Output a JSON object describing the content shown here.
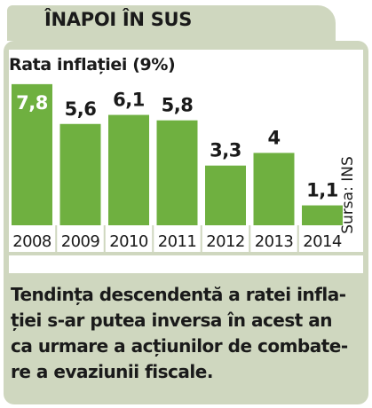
{
  "header": {
    "title": "ÎNAPOI ÎN SUS"
  },
  "chart_data": {
    "type": "bar",
    "title": "Rata inflației (9%)",
    "categories": [
      "2008",
      "2009",
      "2010",
      "2011",
      "2012",
      "2013",
      "2014"
    ],
    "values": [
      7.8,
      5.6,
      6.1,
      5.8,
      3.3,
      4,
      1.1
    ],
    "value_labels": [
      "7,8",
      "5,6",
      "6,1",
      "5,8",
      "3,3",
      "4",
      "1,1"
    ],
    "xlabel": "",
    "ylabel": "",
    "ylim": [
      0,
      9
    ],
    "grid": false,
    "legend": "none",
    "source": "Sursa: INS",
    "colors": {
      "bar": "#6fb040",
      "label_inside": "#ffffff",
      "label_outside": "#1a1a1a",
      "panel": "#cfd7bf"
    }
  },
  "caption": {
    "lines": [
      "Tendința descendentă a ratei infla-",
      "ției s-ar putea inversa în acest an",
      "ca urmare a acțiunilor de combate-",
      "re a evaziunii fiscale."
    ]
  }
}
